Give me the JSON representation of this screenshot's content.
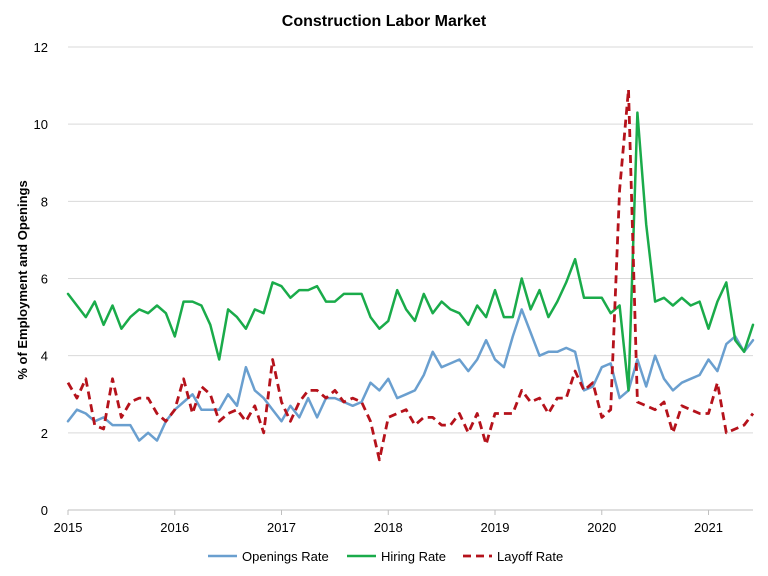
{
  "chart_data": {
    "type": "line",
    "title": "Construction Labor Market",
    "xlabel": "",
    "ylabel": "% of Employment and Openings",
    "xlim": [
      "2015-01",
      "2021-06"
    ],
    "ylim": [
      0,
      12
    ],
    "y_ticks": [
      0,
      2,
      4,
      6,
      8,
      10,
      12
    ],
    "x_ticks": [
      {
        "label": "2015",
        "date": "2015-01"
      },
      {
        "label": "2016",
        "date": "2016-01"
      },
      {
        "label": "2017",
        "date": "2017-01"
      },
      {
        "label": "2018",
        "date": "2018-01"
      },
      {
        "label": "2019",
        "date": "2019-01"
      },
      {
        "label": "2020",
        "date": "2020-01"
      },
      {
        "label": "2021",
        "date": "2021-01"
      }
    ],
    "grid": "horizontal",
    "legend_position": "bottom",
    "start_month": "2015-01",
    "series": [
      {
        "name": "Openings Rate",
        "color": "#6a9fcf",
        "dash": "solid",
        "values": [
          2.3,
          2.6,
          2.5,
          2.3,
          2.4,
          2.2,
          2.2,
          2.2,
          1.8,
          2.0,
          1.8,
          2.3,
          2.6,
          2.8,
          3.0,
          2.6,
          2.6,
          2.6,
          3.0,
          2.7,
          3.7,
          3.1,
          2.9,
          2.6,
          2.3,
          2.7,
          2.4,
          2.9,
          2.4,
          2.9,
          2.9,
          2.8,
          2.7,
          2.8,
          3.3,
          3.1,
          3.4,
          2.9,
          3.0,
          3.1,
          3.5,
          4.1,
          3.7,
          3.8,
          3.9,
          3.6,
          3.9,
          4.4,
          3.9,
          3.7,
          4.5,
          5.2,
          4.6,
          4.0,
          4.1,
          4.1,
          4.2,
          4.1,
          3.1,
          3.2,
          3.7,
          3.8,
          2.9,
          3.1,
          3.9,
          3.2,
          4.0,
          3.4,
          3.1,
          3.3,
          3.4,
          3.5,
          3.9,
          3.6,
          4.3,
          4.5,
          4.1,
          4.4
        ]
      },
      {
        "name": "Hiring Rate",
        "color": "#1aab4a",
        "dash": "solid",
        "values": [
          5.6,
          5.3,
          5.0,
          5.4,
          4.8,
          5.3,
          4.7,
          5.0,
          5.2,
          5.1,
          5.3,
          5.1,
          4.5,
          5.4,
          5.4,
          5.3,
          4.8,
          3.9,
          5.2,
          5.0,
          4.7,
          5.2,
          5.1,
          5.9,
          5.8,
          5.5,
          5.7,
          5.7,
          5.8,
          5.4,
          5.4,
          5.6,
          5.6,
          5.6,
          5.0,
          4.7,
          4.9,
          5.7,
          5.2,
          4.9,
          5.6,
          5.1,
          5.4,
          5.2,
          5.1,
          4.8,
          5.3,
          5.0,
          5.7,
          5.0,
          5.0,
          6.0,
          5.2,
          5.7,
          5.0,
          5.4,
          5.9,
          6.5,
          5.5,
          5.5,
          5.5,
          5.1,
          5.3,
          3.1,
          10.3,
          7.4,
          5.4,
          5.5,
          5.3,
          5.5,
          5.3,
          5.4,
          4.7,
          5.4,
          5.9,
          4.4,
          4.1,
          4.8
        ]
      },
      {
        "name": "Layoff Rate",
        "color": "#b5121b",
        "dash": "dashed",
        "values": [
          3.3,
          2.9,
          3.4,
          2.2,
          2.1,
          3.4,
          2.4,
          2.8,
          2.9,
          2.9,
          2.5,
          2.3,
          2.6,
          3.4,
          2.5,
          3.2,
          3.0,
          2.3,
          2.5,
          2.6,
          2.3,
          2.7,
          2.0,
          3.9,
          2.8,
          2.3,
          2.8,
          3.1,
          3.1,
          2.9,
          3.1,
          2.8,
          2.9,
          2.8,
          2.3,
          1.3,
          2.4,
          2.5,
          2.6,
          2.2,
          2.4,
          2.4,
          2.2,
          2.2,
          2.5,
          2.0,
          2.5,
          1.7,
          2.5,
          2.5,
          2.5,
          3.1,
          2.8,
          2.9,
          2.5,
          2.9,
          2.9,
          3.6,
          3.1,
          3.3,
          2.4,
          2.6,
          8.3,
          10.9,
          2.8,
          2.7,
          2.6,
          2.8,
          2.0,
          2.7,
          2.6,
          2.5,
          2.5,
          3.3,
          2.0,
          2.1,
          2.2,
          2.5
        ]
      }
    ]
  }
}
